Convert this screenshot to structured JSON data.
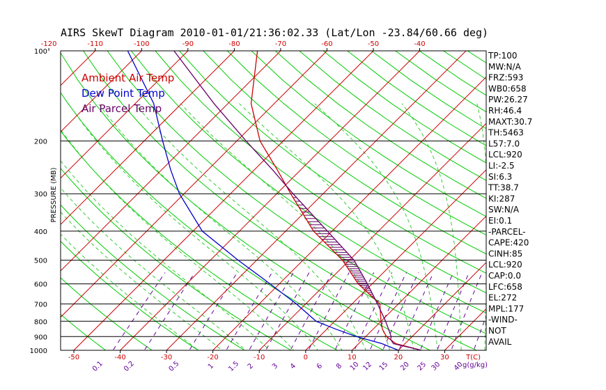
{
  "chart_data": {
    "type": "line",
    "title": "AIRS SkewT Diagram 2010-01-01/21:36:02.33 (Lat/Lon -23.84/60.66 deg)",
    "ylabel": "PRESSURE (MB)",
    "xlabel": "T(C)",
    "mixing_label": "g(g/kg)",
    "pressure_ticks": [
      "100",
      "200",
      "300",
      "400",
      "500",
      "600",
      "700",
      "800",
      "900",
      "1000"
    ],
    "pressure_values": [
      100,
      200,
      300,
      400,
      500,
      600,
      700,
      800,
      900,
      1000
    ],
    "top_temp_ticks": [
      "-120",
      "-110",
      "-100",
      "-90",
      "-80",
      "-70",
      "-60",
      "-50",
      "-40"
    ],
    "bottom_temp_ticks": [
      "-50",
      "-40",
      "-30",
      "-20",
      "-10",
      "0",
      "10",
      "20",
      "30"
    ],
    "mixing_ratio_ticks": [
      "0.1",
      "0.2",
      "0.5",
      "1",
      "1.5",
      "2",
      "3",
      "4",
      "6",
      "8",
      "10",
      "12",
      "15",
      "20",
      "25",
      "30",
      "40"
    ],
    "series": [
      {
        "name": "Ambient Air Temp",
        "color": "#cc0000",
        "p": [
          1000,
          950,
          900,
          850,
          800,
          700,
          600,
          500,
          400,
          300,
          250,
          200,
          150,
          100
        ],
        "t": [
          25,
          18,
          14.5,
          12,
          10,
          6,
          -3,
          -11.5,
          -24,
          -37,
          -45,
          -55,
          -65,
          -75
        ]
      },
      {
        "name": "Dew Point Temp",
        "color": "#0000cc",
        "p": [
          1000,
          950,
          900,
          850,
          800,
          700,
          600,
          500,
          400,
          300,
          250,
          200,
          150,
          100
        ],
        "t": [
          20,
          15,
          8,
          2,
          -4,
          -12,
          -22,
          -34,
          -48,
          -61,
          -68,
          -76,
          -86,
          -103
        ]
      },
      {
        "name": "Air Parcel Temp",
        "color": "#660066",
        "p": [
          1000,
          950,
          920,
          900,
          800,
          700,
          600,
          500,
          400,
          300,
          250,
          200,
          150,
          100
        ],
        "t": [
          25,
          17.5,
          16,
          15.5,
          11,
          5.5,
          -1,
          -9,
          -21,
          -36.5,
          -46,
          -58,
          -73,
          -93
        ]
      }
    ],
    "legend_position": "top-left",
    "stats": [
      "TP:100",
      "MW:N/A",
      "FRZ:593",
      "WB0:658",
      "PW:26.27",
      "RH:46.4",
      "MAXT:30.7",
      "TH:5463",
      "L57:7.0",
      "LCL:920",
      "LI:-2.5",
      "SI:6.3",
      "TT:38.7",
      "KI:287",
      "SW:N/A",
      "EI:0.1",
      "-PARCEL-",
      "CAPE:420",
      "CINH:85",
      "LCL:920",
      "CAP:0.0",
      "LFC:658",
      "EL:272",
      "MPL:177",
      "-WIND-",
      "NOT",
      "AVAIL"
    ],
    "grid": true
  },
  "colors": {
    "isotherm": "#cc0000",
    "dry_adiabat": "#00cc00",
    "moist_adiabat": "#33cc33",
    "mixing_ratio": "#660099",
    "isobar": "#000000"
  }
}
